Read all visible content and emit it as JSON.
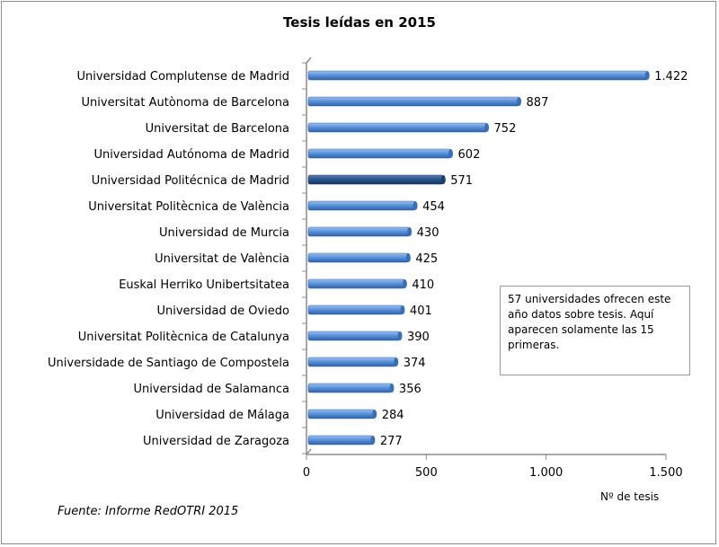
{
  "chart_data": {
    "type": "bar",
    "orientation": "horizontal",
    "title": "Tesis leídas en 2015",
    "xlabel": "Nº de tesis",
    "ylabel": "",
    "xlim": [
      0,
      1500
    ],
    "x_ticks": [
      "0",
      "500",
      "1.000",
      "1.500"
    ],
    "x_tick_values": [
      0,
      500,
      1000,
      1500
    ],
    "grid": false,
    "categories": [
      "Universidad Complutense de Madrid",
      "Universitat Autònoma de Barcelona",
      "Universitat de Barcelona",
      "Universidad Autónoma de Madrid",
      "Universidad Politécnica de Madrid",
      "Universitat Politècnica de València",
      "Universidad de Murcia",
      "Universitat de València",
      "Euskal Herriko Unibertsitatea",
      "Universidad de Oviedo",
      "Universitat Politècnica de Catalunya",
      "Universidade de Santiago  de Compostela",
      "Universidad de Salamanca",
      "Universidad de Málaga",
      "Universidad de Zaragoza"
    ],
    "values": [
      1422,
      887,
      752,
      602,
      571,
      454,
      430,
      425,
      410,
      401,
      390,
      374,
      356,
      284,
      277
    ],
    "data_labels": [
      "1.422",
      "887",
      "752",
      "602",
      "571",
      "454",
      "430",
      "425",
      "410",
      "401",
      "390",
      "374",
      "356",
      "284",
      "277"
    ],
    "highlighted_category": "Universidad Politécnica de Madrid",
    "colors": {
      "bar": "#4f86d0",
      "highlight": "#2a5388"
    },
    "annotation": "57 universidades ofrecen este año datos sobre tesis. Aquí aparecen solamente las 15 primeras.",
    "source": "Fuente: Informe RedOTRI 2015"
  }
}
